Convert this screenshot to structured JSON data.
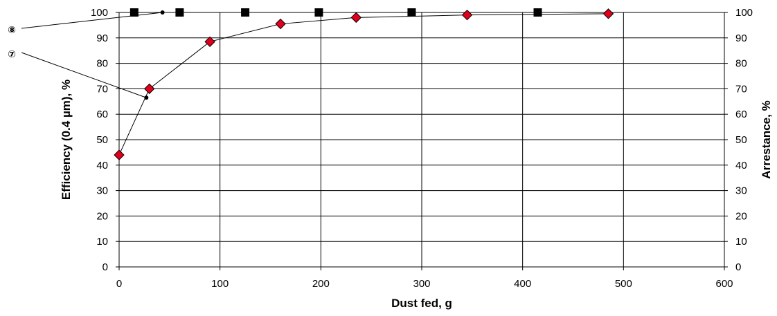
{
  "chart_data": {
    "type": "scatter",
    "title": "",
    "xlabel": "Dust fed, g",
    "ylabel": "Efficiency (0.4 µm), %",
    "y2label": "Arrestance, %",
    "xlim": [
      0,
      600
    ],
    "ylim": [
      0,
      100
    ],
    "y2lim": [
      0,
      100
    ],
    "x_ticks": [
      "0",
      "100",
      "200",
      "300",
      "400",
      "500",
      "600"
    ],
    "y_ticks": [
      "0",
      "10",
      "20",
      "30",
      "40",
      "50",
      "60",
      "70",
      "80",
      "90",
      "100"
    ],
    "y2_ticks": [
      "0",
      "10",
      "20",
      "30",
      "40",
      "50",
      "60",
      "70",
      "80",
      "90",
      "100"
    ],
    "grid": true,
    "series": [
      {
        "axis": "left",
        "marker": "diamond",
        "color": "#e0001b",
        "connected": true,
        "x": [
          0,
          30,
          90,
          160,
          235,
          345,
          485
        ],
        "y": [
          44,
          70,
          88.5,
          95.5,
          98,
          99,
          99.5
        ]
      },
      {
        "axis": "right",
        "marker": "square",
        "color": "#000000",
        "connected": false,
        "x": [
          15,
          60,
          125,
          198,
          290,
          415
        ],
        "y": [
          100,
          100,
          100,
          100,
          100,
          100
        ]
      }
    ],
    "annotations": [
      {
        "label": "⑧",
        "x": 43,
        "y": 100
      },
      {
        "label": "⑦",
        "x": 27,
        "y": 66.5
      }
    ]
  }
}
